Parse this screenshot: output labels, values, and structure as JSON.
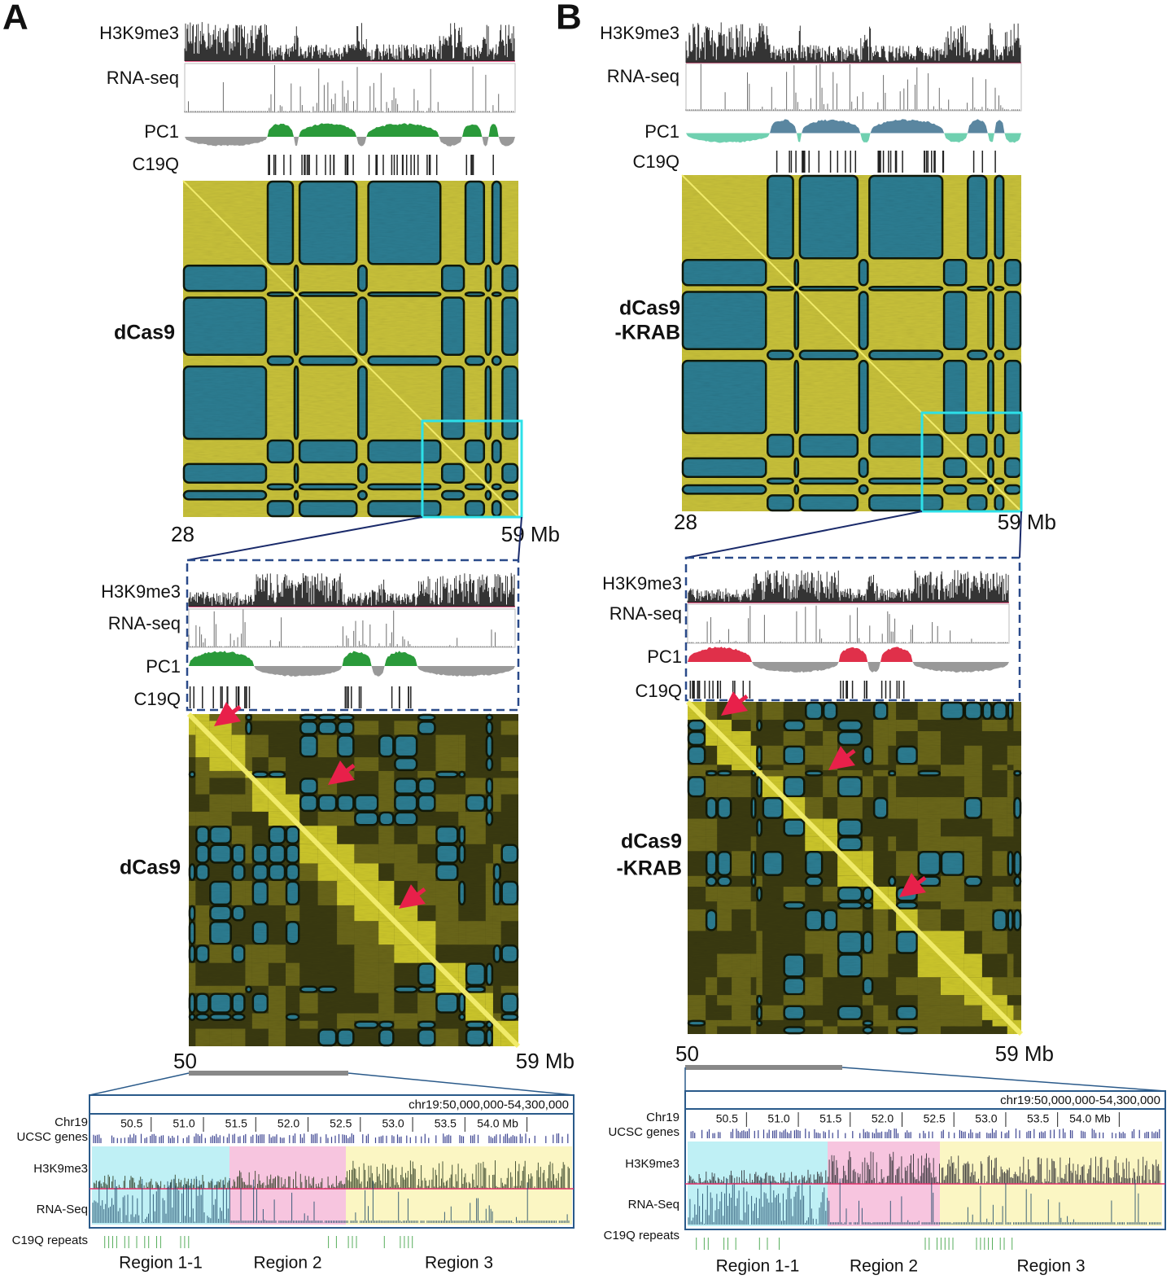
{
  "panels": [
    {
      "letter": "A",
      "tracks": [
        "H3K9me3",
        "RNA-seq",
        "PC1",
        "C19Q"
      ],
      "heatmap_label": [
        "dCas9"
      ],
      "axis": [
        "28",
        "59 Mb"
      ],
      "zoom_tracks": [
        "H3K9me3",
        "RNA-seq",
        "PC1",
        "C19Q"
      ],
      "zoom_heatmap_label": [
        "dCas9"
      ],
      "zoom_axis": [
        "50",
        "59 Mb"
      ],
      "browser": {
        "coordinates": "chr19:50,000,000-54,300,000",
        "track_labels": [
          "Chr19",
          "UCSC genes",
          "H3K9me3",
          "RNA-Seq",
          "C19Q repeats"
        ],
        "ticks": [
          "50.5",
          "51.0",
          "51.5",
          "52.0",
          "52.5",
          "53.0",
          "53.5",
          "54.0 Mb"
        ],
        "regions": [
          "Region 1-1",
          "Region 2",
          "Region 3"
        ]
      }
    },
    {
      "letter": "B",
      "tracks": [
        "H3K9me3",
        "RNA-seq",
        "PC1",
        "C19Q"
      ],
      "heatmap_label": [
        "dCas9",
        "-KRAB"
      ],
      "axis": [
        "28",
        "59 Mb"
      ],
      "zoom_tracks": [
        "H3K9me3",
        "RNA-seq",
        "PC1",
        "C19Q"
      ],
      "zoom_heatmap_label": [
        "dCas9",
        "-KRAB"
      ],
      "zoom_axis": [
        "50",
        "59 Mb"
      ],
      "browser": {
        "coordinates": "chr19:50,000,000-54,300,000",
        "track_labels": [
          "Chr19",
          "UCSC genes",
          "H3K9me3",
          "RNA-Seq",
          "C19Q repeats"
        ],
        "ticks": [
          "50.5",
          "51.0",
          "51.5",
          "52.0",
          "52.5",
          "53.0",
          "53.5",
          "54.0 Mb"
        ],
        "regions": [
          "Region 1-1",
          "Region 2",
          "Region 3"
        ]
      }
    }
  ]
}
